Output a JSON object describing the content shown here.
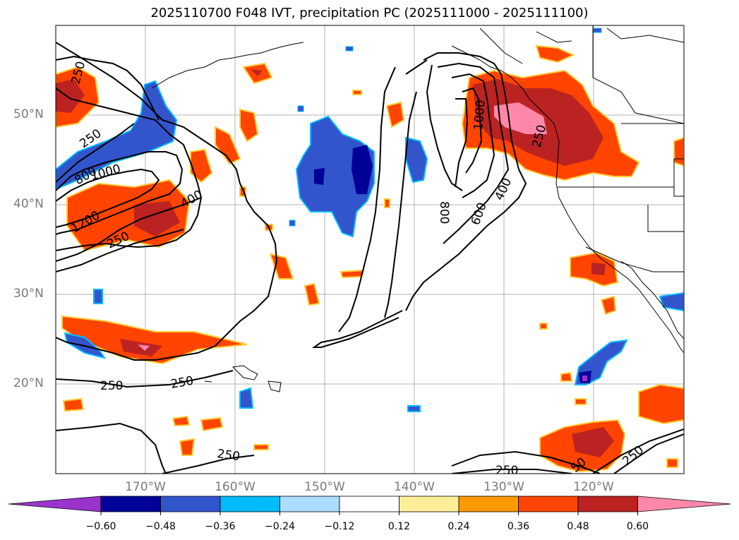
{
  "title": "2025110700 F048 IVT, precipitation PC (2025111000 - 2025111100)",
  "lat_labels": [
    "50°N",
    "40°N",
    "30°N",
    "20°N"
  ],
  "lon_labels": [
    "170°W",
    "160°W",
    "150°W",
    "140°W",
    "130°W",
    "120°W"
  ],
  "contour_labels": [
    "250",
    "250",
    "800",
    "1000",
    "1200",
    "400",
    "250",
    "1000",
    "800",
    "250",
    "600",
    "400",
    "250",
    "250",
    "250",
    "250",
    "250",
    "50"
  ],
  "colorbar": {
    "tick_labels": [
      "−0.60",
      "−0.48",
      "−0.36",
      "−0.24",
      "−0.12",
      "0.12",
      "0.24",
      "0.36",
      "0.48",
      "0.60"
    ],
    "colors": [
      "#9933cc",
      "#000099",
      "#3355cc",
      "#00bbff",
      "#aaddff",
      "#ffffff",
      "#ffee99",
      "#ff9900",
      "#ff4400",
      "#bb2222",
      "#ff88aa"
    ]
  },
  "chart_data": {
    "type": "map",
    "title": "2025110700 F048 IVT, precipitation PC (2025111000 - 2025111100)",
    "region": {
      "lon_range": [
        "180°W",
        "110°W"
      ],
      "lat_range": [
        "10°N",
        "60°N"
      ]
    },
    "variables": [
      "IVT (contours)",
      "precipitation PC (filled)"
    ],
    "ivt_contour_levels": [
      250,
      400,
      600,
      800,
      1000,
      1200
    ],
    "precip_pc_levels": [
      -0.6,
      -0.48,
      -0.36,
      -0.24,
      -0.12,
      0.12,
      0.24,
      0.36,
      0.48,
      0.6
    ],
    "colorbar_extend": "both"
  }
}
